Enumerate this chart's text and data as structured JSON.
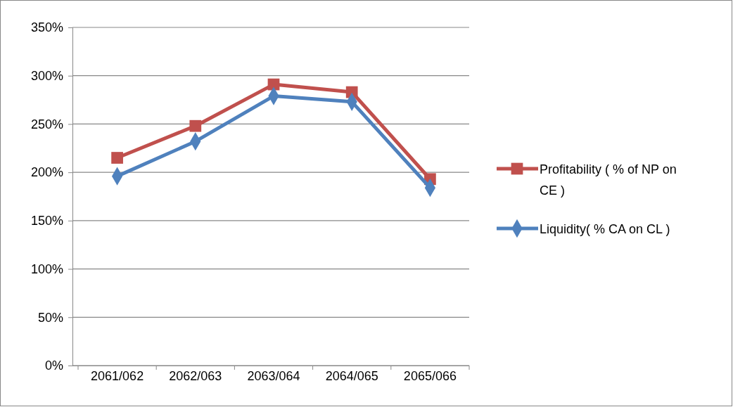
{
  "chart_data": {
    "type": "line",
    "categories": [
      "2061/062",
      "2062/063",
      "2063/064",
      "2064/065",
      "2065/066"
    ],
    "series": [
      {
        "name": "Profitability ( % of NP on CE )",
        "color": "#c0504d",
        "marker": "square",
        "values": [
          215,
          248,
          291,
          283,
          193
        ]
      },
      {
        "name": "Liquidity( % CA on CL )",
        "color": "#4f81bd",
        "marker": "diamond",
        "values": [
          196,
          232,
          279,
          273,
          184
        ]
      }
    ],
    "ylim": [
      0,
      350
    ],
    "yticks": [
      {
        "value": 0,
        "label": "0%"
      },
      {
        "value": 50,
        "label": "50%"
      },
      {
        "value": 100,
        "label": "100%"
      },
      {
        "value": 150,
        "label": "150%"
      },
      {
        "value": 200,
        "label": "200%"
      },
      {
        "value": 250,
        "label": "250%"
      },
      {
        "value": 300,
        "label": "300%"
      },
      {
        "value": 350,
        "label": "350%"
      }
    ],
    "grid": "y",
    "legend": "right",
    "line_style": "solid"
  }
}
